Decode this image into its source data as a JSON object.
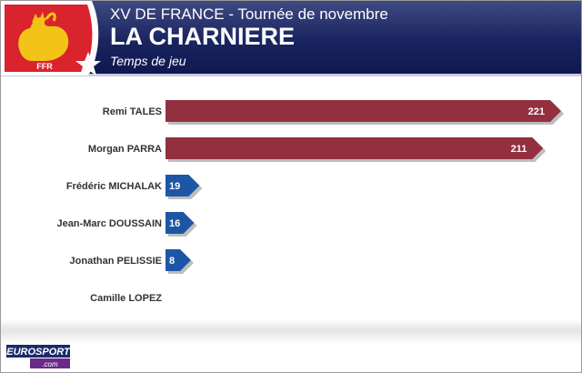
{
  "header": {
    "suptitle": "XV DE FRANCE - Tournée de novembre",
    "title": "LA CHARNIERE",
    "subtitle": "Temps de jeu",
    "logo_text": "FFR"
  },
  "footer": {
    "brand_main": "EUROSPORT",
    "brand_sub": ".com"
  },
  "colors": {
    "header_blue": "#1a2460",
    "bar_red": "#933040",
    "bar_blue": "#1e56a6"
  },
  "chart_data": {
    "type": "bar",
    "orientation": "horizontal",
    "title": "LA CHARNIERE",
    "subtitle": "Temps de jeu",
    "categories": [
      "Remi TALES",
      "Morgan PARRA",
      "Frédéric MICHALAK",
      "Jean-Marc DOUSSAIN",
      "Jonathan PELISSIE",
      "Camille LOPEZ"
    ],
    "values": [
      221,
      211,
      19,
      16,
      8,
      null
    ],
    "value_labels": [
      "221",
      "211",
      "19",
      "16",
      "8",
      ""
    ],
    "bar_colors": [
      "#933040",
      "#933040",
      "#1e56a6",
      "#1e56a6",
      "#1e56a6",
      "#1e56a6"
    ],
    "grid": false,
    "legend": "none"
  }
}
